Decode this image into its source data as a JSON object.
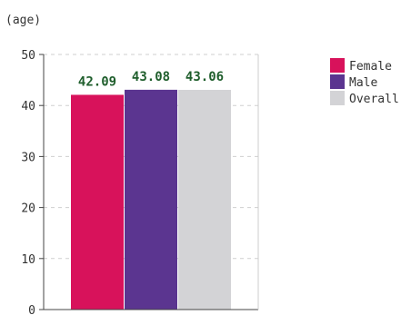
{
  "chart_data": {
    "type": "bar",
    "unit_label": "(age)",
    "categories": [
      "Female",
      "Male",
      "Overall"
    ],
    "values": [
      42.09,
      43.08,
      43.06
    ],
    "value_labels": [
      "42.09",
      "43.08",
      "43.06"
    ],
    "colors": [
      "#d8125b",
      "#5b3590",
      "#d3d3d6"
    ],
    "ylim": [
      0,
      50
    ],
    "yticks": [
      0,
      10,
      20,
      30,
      40,
      50
    ],
    "ytick_labels": [
      "0",
      "10",
      "20",
      "30",
      "40",
      "50"
    ],
    "grid": true,
    "legend": {
      "position": "right",
      "entries": [
        "Female",
        "Male",
        "Overall"
      ]
    }
  }
}
